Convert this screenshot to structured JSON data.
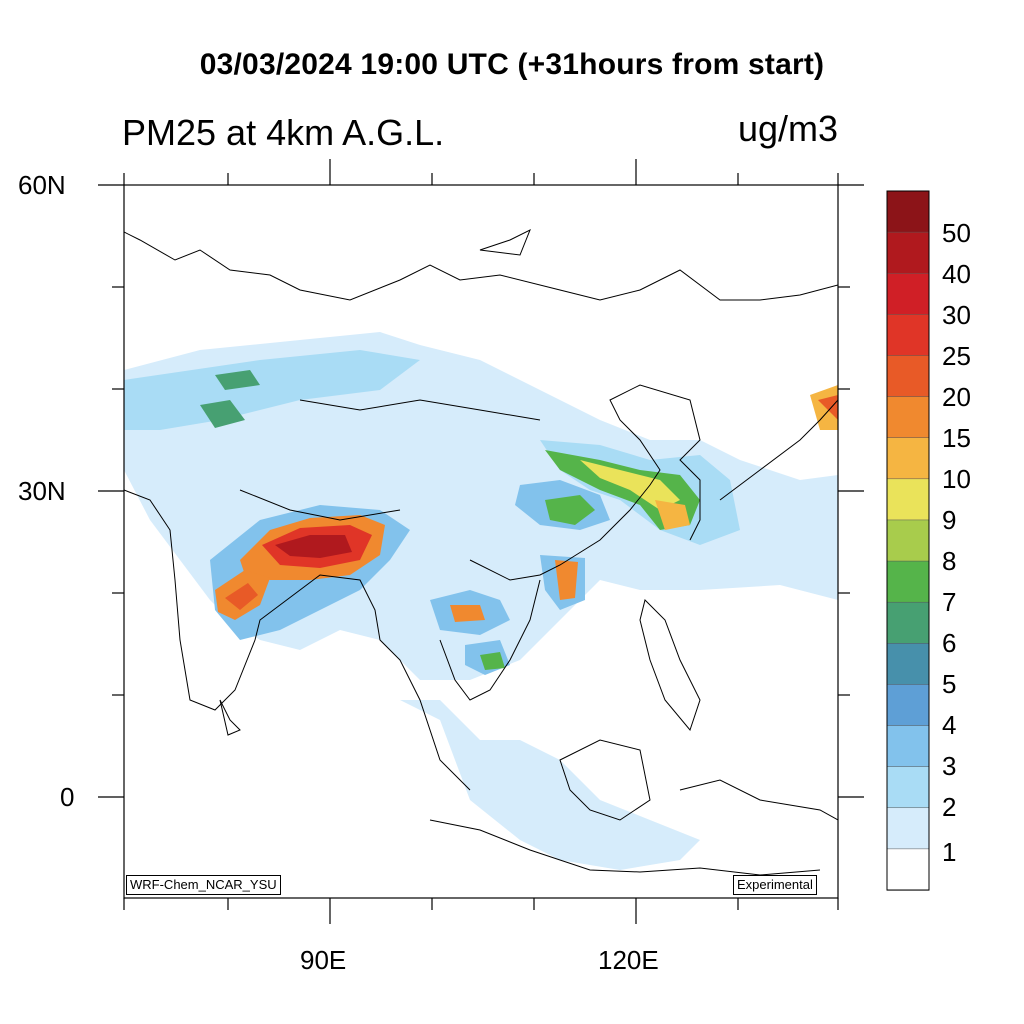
{
  "title": "03/03/2024 19:00 UTC (+31hours from start)",
  "subtitle": "PM25 at 4km A.G.L.",
  "units": "ug/m3",
  "axes": {
    "lat_labels": [
      "60N",
      "30N",
      "0"
    ],
    "lon_labels": [
      "90E",
      "120E"
    ]
  },
  "model_label": "WRF-Chem_NCAR_YSU",
  "experimental_label": "Experimental",
  "legend": {
    "labels": [
      "50",
      "40",
      "30",
      "25",
      "20",
      "15",
      "10",
      "9",
      "8",
      "7",
      "6",
      "5",
      "4",
      "3",
      "2",
      "1"
    ],
    "colors": [
      "#8c1418",
      "#b0191e",
      "#d01f26",
      "#e03527",
      "#e85a27",
      "#f0892f",
      "#f5b542",
      "#eae35a",
      "#a8cc4c",
      "#55b44a",
      "#47a072",
      "#4790ab",
      "#5e9fd6",
      "#82c2ec",
      "#a9dcf5",
      "#d6ecfb",
      "#ffffff"
    ]
  }
}
